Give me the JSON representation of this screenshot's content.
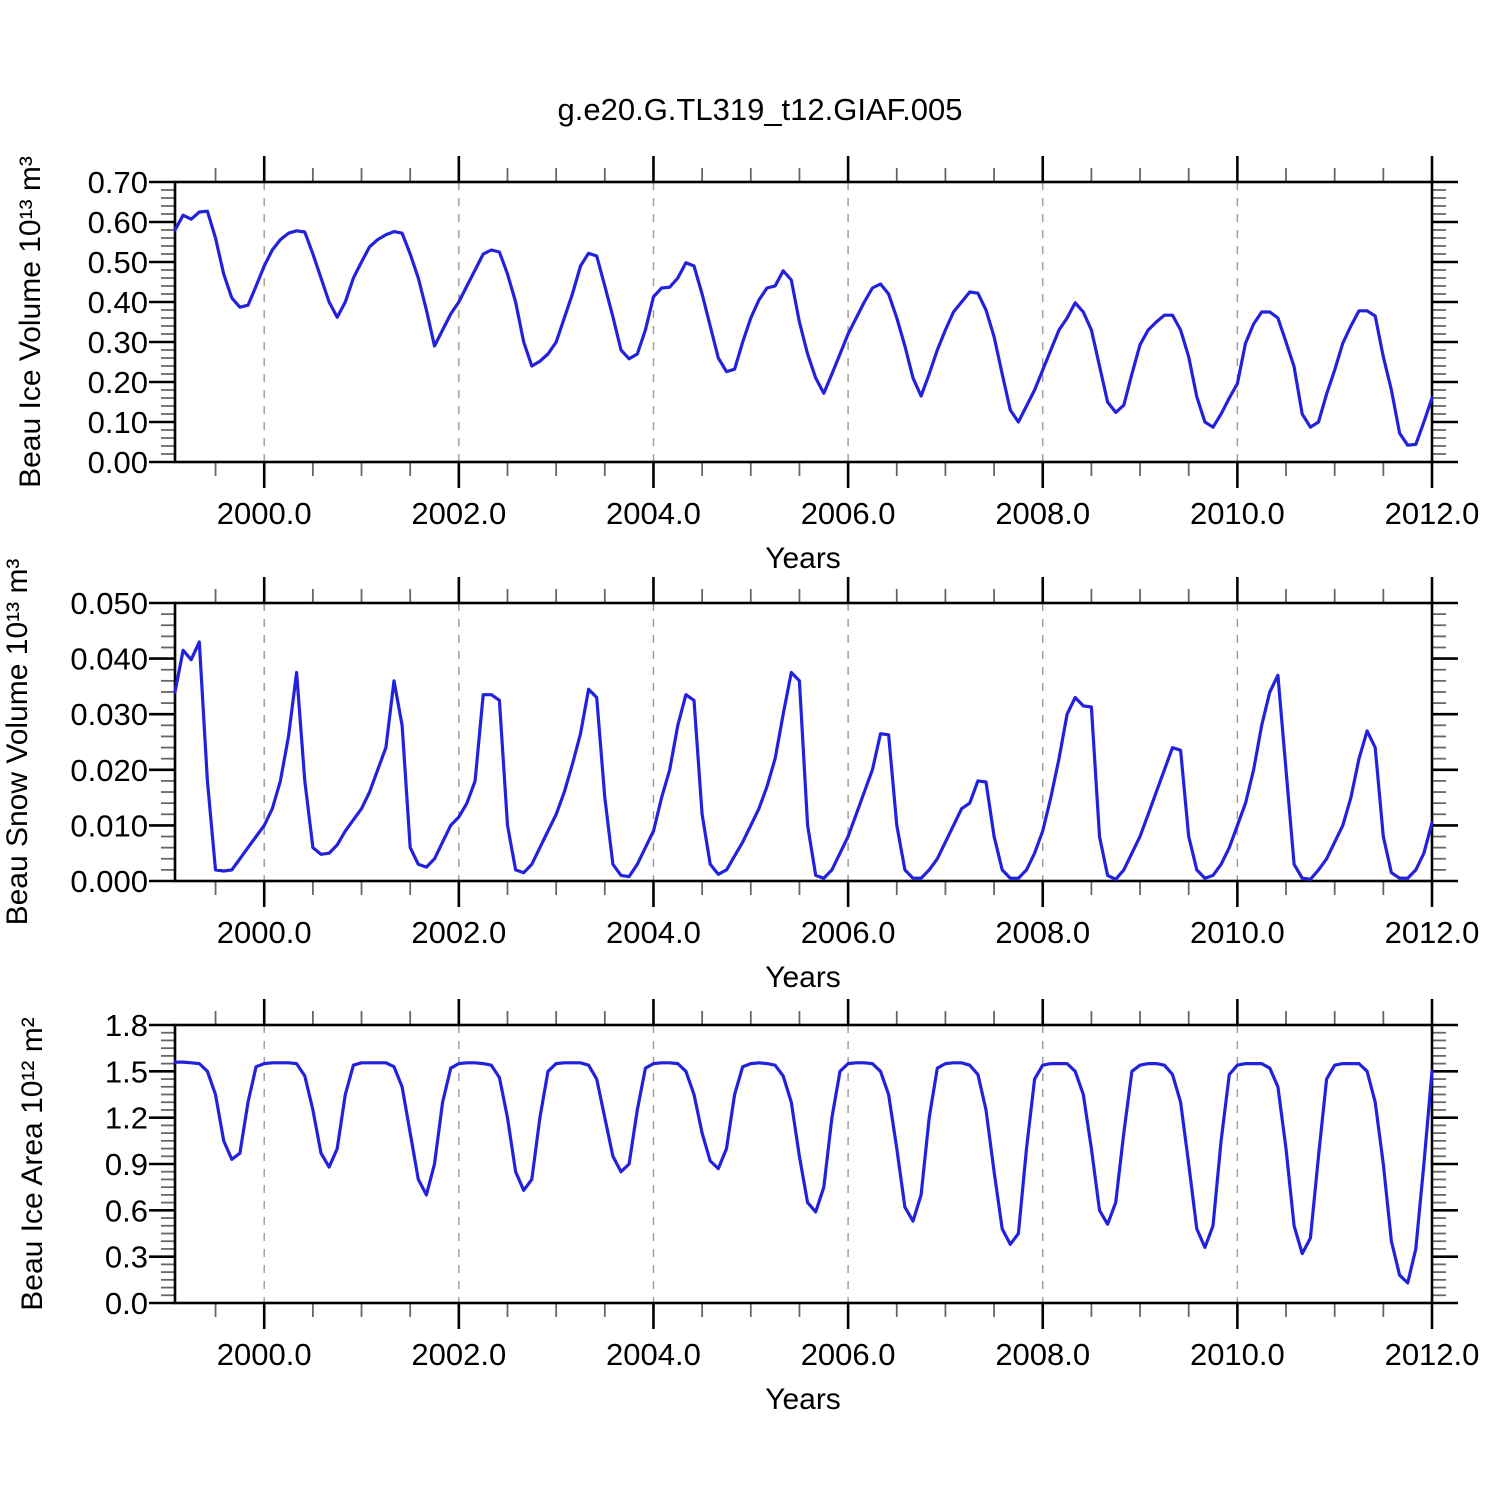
{
  "title": "g.e20.G.TL319_t12.GIAF.005",
  "style": {
    "line_color": "#2222dd",
    "frame_color": "#000000",
    "major_tick_color": "#000000",
    "minor_tick_color": "#666666",
    "grid_color": "#999999",
    "text_color": "#000000"
  },
  "chart_data": [
    {
      "type": "line",
      "series_name": "Beau Ice Volume",
      "ylabel": "Beau Ice Volume 10¹³ m³",
      "xlabel": "Years",
      "ylim": [
        0.0,
        0.7
      ],
      "ytick_labels": [
        "0.00",
        "0.10",
        "0.20",
        "0.30",
        "0.40",
        "0.50",
        "0.60",
        "0.70"
      ],
      "y_major_step": 0.1,
      "y_minor_step": 0.02,
      "xlim": [
        1999.0833,
        2012.0
      ],
      "xtick_values": [
        2000,
        2002,
        2004,
        2006,
        2008,
        2010,
        2012
      ],
      "xtick_labels": [
        "2000.0",
        "2002.0",
        "2004.0",
        "2006.0",
        "2008.0",
        "2010.0",
        "2012.0"
      ],
      "x_minor_step": 0.5,
      "grid_x_values": [
        2000,
        2002,
        2004,
        2006,
        2008,
        2010
      ],
      "x_start": 1999.0833,
      "x_step_years": 0.0833333,
      "values": [
        0.58,
        0.617,
        0.607,
        0.625,
        0.627,
        0.56,
        0.47,
        0.41,
        0.387,
        0.392,
        0.44,
        0.49,
        0.53,
        0.556,
        0.572,
        0.578,
        0.575,
        0.52,
        0.46,
        0.4,
        0.362,
        0.4,
        0.46,
        0.5,
        0.538,
        0.556,
        0.568,
        0.576,
        0.572,
        0.52,
        0.46,
        0.38,
        0.29,
        0.33,
        0.37,
        0.4,
        0.44,
        0.48,
        0.52,
        0.53,
        0.525,
        0.47,
        0.4,
        0.3,
        0.24,
        0.252,
        0.27,
        0.3,
        0.36,
        0.42,
        0.49,
        0.522,
        0.515,
        0.44,
        0.363,
        0.28,
        0.258,
        0.27,
        0.33,
        0.413,
        0.435,
        0.437,
        0.46,
        0.498,
        0.49,
        0.42,
        0.34,
        0.26,
        0.226,
        0.232,
        0.3,
        0.36,
        0.405,
        0.435,
        0.44,
        0.478,
        0.455,
        0.35,
        0.27,
        0.21,
        0.172,
        0.22,
        0.27,
        0.32,
        0.36,
        0.4,
        0.435,
        0.445,
        0.42,
        0.36,
        0.29,
        0.21,
        0.165,
        0.22,
        0.28,
        0.33,
        0.375,
        0.4,
        0.425,
        0.422,
        0.38,
        0.313,
        0.22,
        0.13,
        0.1,
        0.14,
        0.18,
        0.23,
        0.28,
        0.33,
        0.36,
        0.398,
        0.375,
        0.33,
        0.24,
        0.15,
        0.124,
        0.142,
        0.22,
        0.293,
        0.33,
        0.35,
        0.367,
        0.367,
        0.33,
        0.263,
        0.163,
        0.1,
        0.087,
        0.12,
        0.16,
        0.196,
        0.297,
        0.345,
        0.375,
        0.375,
        0.36,
        0.3,
        0.238,
        0.12,
        0.087,
        0.1,
        0.17,
        0.23,
        0.297,
        0.34,
        0.378,
        0.378,
        0.365,
        0.263,
        0.18,
        0.072,
        0.042,
        0.044,
        0.1,
        0.16
      ]
    },
    {
      "type": "line",
      "series_name": "Beau Snow Volume",
      "ylabel": "Beau Snow Volume 10¹³ m³",
      "xlabel": "Years",
      "ylim": [
        0.0,
        0.05
      ],
      "ytick_labels": [
        "0.000",
        "0.010",
        "0.020",
        "0.030",
        "0.040",
        "0.050"
      ],
      "y_major_step": 0.01,
      "y_minor_step": 0.002,
      "xlim": [
        1999.0833,
        2012.0
      ],
      "xtick_values": [
        2000,
        2002,
        2004,
        2006,
        2008,
        2010,
        2012
      ],
      "xtick_labels": [
        "2000.0",
        "2002.0",
        "2004.0",
        "2006.0",
        "2008.0",
        "2010.0",
        "2012.0"
      ],
      "x_minor_step": 0.5,
      "grid_x_values": [
        2000,
        2002,
        2004,
        2006,
        2008,
        2010
      ],
      "x_start": 1999.0833,
      "x_step_years": 0.0833333,
      "values": [
        0.034,
        0.0415,
        0.0398,
        0.043,
        0.018,
        0.002,
        0.0018,
        0.002,
        0.004,
        0.006,
        0.008,
        0.01,
        0.013,
        0.018,
        0.026,
        0.0375,
        0.018,
        0.006,
        0.0048,
        0.005,
        0.0065,
        0.009,
        0.011,
        0.013,
        0.016,
        0.02,
        0.024,
        0.036,
        0.028,
        0.006,
        0.003,
        0.0025,
        0.004,
        0.007,
        0.01,
        0.0115,
        0.014,
        0.018,
        0.0335,
        0.0335,
        0.0325,
        0.01,
        0.002,
        0.0015,
        0.003,
        0.006,
        0.009,
        0.012,
        0.016,
        0.021,
        0.0265,
        0.0345,
        0.033,
        0.015,
        0.003,
        0.001,
        0.0008,
        0.003,
        0.006,
        0.009,
        0.015,
        0.02,
        0.028,
        0.0335,
        0.0325,
        0.012,
        0.003,
        0.0012,
        0.002,
        0.0045,
        0.007,
        0.01,
        0.013,
        0.017,
        0.022,
        0.03,
        0.0375,
        0.036,
        0.01,
        0.001,
        0.0005,
        0.002,
        0.005,
        0.008,
        0.012,
        0.016,
        0.02,
        0.0265,
        0.0263,
        0.01,
        0.002,
        0.0005,
        0.0005,
        0.002,
        0.004,
        0.007,
        0.01,
        0.013,
        0.014,
        0.018,
        0.0178,
        0.008,
        0.002,
        0.0005,
        0.0005,
        0.002,
        0.005,
        0.009,
        0.015,
        0.022,
        0.03,
        0.033,
        0.0315,
        0.0313,
        0.008,
        0.001,
        0.0003,
        0.002,
        0.005,
        0.008,
        0.012,
        0.016,
        0.02,
        0.024,
        0.0235,
        0.008,
        0.002,
        0.0005,
        0.001,
        0.003,
        0.006,
        0.01,
        0.014,
        0.02,
        0.028,
        0.034,
        0.037,
        0.02,
        0.003,
        0.0005,
        0.0003,
        0.002,
        0.004,
        0.007,
        0.01,
        0.015,
        0.022,
        0.027,
        0.024,
        0.008,
        0.0015,
        0.0005,
        0.0005,
        0.002,
        0.005,
        0.0105
      ]
    },
    {
      "type": "line",
      "series_name": "Beau Ice Area",
      "ylabel": "Beau Ice Area 10¹² m²",
      "xlabel": "Years",
      "ylim": [
        0.0,
        1.8
      ],
      "ytick_labels": [
        "0.0",
        "0.3",
        "0.6",
        "0.9",
        "1.2",
        "1.5",
        "1.8"
      ],
      "y_major_step": 0.3,
      "y_minor_step": 0.05,
      "xlim": [
        1999.0833,
        2012.0
      ],
      "xtick_values": [
        2000,
        2002,
        2004,
        2006,
        2008,
        2010,
        2012
      ],
      "xtick_labels": [
        "2000.0",
        "2002.0",
        "2004.0",
        "2006.0",
        "2008.0",
        "2010.0",
        "2012.0"
      ],
      "x_minor_step": 0.5,
      "grid_x_values": [
        2000,
        2002,
        2004,
        2006,
        2008,
        2010
      ],
      "x_start": 1999.0833,
      "x_step_years": 0.0833333,
      "values": [
        1.56,
        1.56,
        1.555,
        1.55,
        1.5,
        1.35,
        1.05,
        0.93,
        0.97,
        1.3,
        1.53,
        1.55,
        1.555,
        1.555,
        1.555,
        1.55,
        1.47,
        1.25,
        0.97,
        0.88,
        1.0,
        1.35,
        1.54,
        1.555,
        1.555,
        1.555,
        1.555,
        1.53,
        1.4,
        1.1,
        0.8,
        0.7,
        0.9,
        1.3,
        1.52,
        1.55,
        1.555,
        1.555,
        1.55,
        1.54,
        1.46,
        1.2,
        0.85,
        0.73,
        0.8,
        1.2,
        1.5,
        1.55,
        1.555,
        1.555,
        1.555,
        1.54,
        1.45,
        1.2,
        0.95,
        0.85,
        0.9,
        1.25,
        1.52,
        1.55,
        1.555,
        1.555,
        1.55,
        1.5,
        1.35,
        1.1,
        0.92,
        0.87,
        1.0,
        1.35,
        1.53,
        1.55,
        1.555,
        1.55,
        1.54,
        1.47,
        1.3,
        0.95,
        0.65,
        0.59,
        0.75,
        1.2,
        1.5,
        1.55,
        1.555,
        1.555,
        1.55,
        1.5,
        1.35,
        1.0,
        0.62,
        0.53,
        0.7,
        1.2,
        1.52,
        1.55,
        1.555,
        1.555,
        1.54,
        1.48,
        1.25,
        0.85,
        0.48,
        0.38,
        0.45,
        1.0,
        1.45,
        1.54,
        1.55,
        1.55,
        1.55,
        1.5,
        1.35,
        1.0,
        0.6,
        0.51,
        0.65,
        1.1,
        1.5,
        1.54,
        1.55,
        1.55,
        1.54,
        1.48,
        1.3,
        0.9,
        0.48,
        0.36,
        0.5,
        1.05,
        1.48,
        1.54,
        1.55,
        1.55,
        1.55,
        1.52,
        1.4,
        1.0,
        0.5,
        0.32,
        0.42,
        0.95,
        1.45,
        1.54,
        1.55,
        1.55,
        1.55,
        1.5,
        1.3,
        0.9,
        0.4,
        0.18,
        0.13,
        0.35,
        0.9,
        1.5
      ]
    }
  ]
}
